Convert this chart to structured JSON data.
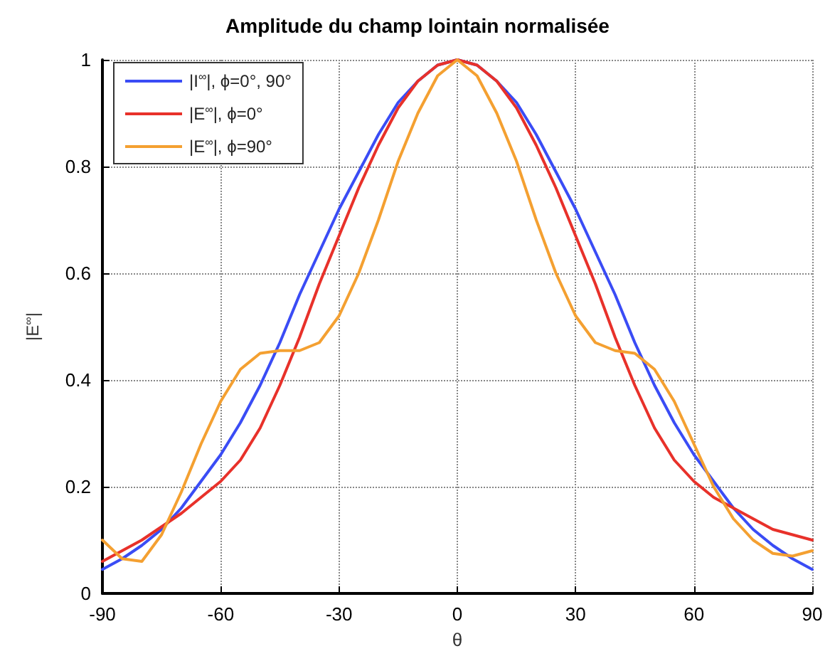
{
  "chart_data": {
    "type": "line",
    "title": "Amplitude du champ lointain normalisée",
    "xlabel": "θ",
    "ylabel": "|E$^{∞}$|",
    "x": [
      -90,
      -85,
      -80,
      -75,
      -70,
      -65,
      -60,
      -55,
      -50,
      -45,
      -40,
      -35,
      -30,
      -25,
      -20,
      -15,
      -10,
      -5,
      0,
      5,
      10,
      15,
      20,
      25,
      30,
      35,
      40,
      45,
      50,
      55,
      60,
      65,
      70,
      75,
      80,
      85,
      90
    ],
    "series": [
      {
        "name": "|I$^{∞}$|, ϕ=0°, 90°",
        "color": "#3a4cf5",
        "values": [
          0.045,
          0.065,
          0.09,
          0.12,
          0.16,
          0.21,
          0.26,
          0.32,
          0.39,
          0.47,
          0.56,
          0.64,
          0.72,
          0.79,
          0.86,
          0.92,
          0.96,
          0.99,
          1,
          0.99,
          0.96,
          0.92,
          0.86,
          0.79,
          0.72,
          0.64,
          0.56,
          0.47,
          0.39,
          0.32,
          0.26,
          0.21,
          0.16,
          0.12,
          0.09,
          0.065,
          0.045
        ]
      },
      {
        "name": "|E$^{∞}$|, ϕ=0°",
        "color": "#e8312a",
        "values": [
          0.06,
          0.08,
          0.1,
          0.125,
          0.15,
          0.18,
          0.21,
          0.25,
          0.31,
          0.39,
          0.48,
          0.58,
          0.67,
          0.76,
          0.84,
          0.91,
          0.96,
          0.99,
          1,
          0.99,
          0.96,
          0.91,
          0.84,
          0.76,
          0.67,
          0.58,
          0.48,
          0.39,
          0.31,
          0.25,
          0.21,
          0.18,
          0.16,
          0.14,
          0.12,
          0.11,
          0.1
        ]
      },
      {
        "name": "|E$^{∞}$|, ϕ=90°",
        "color": "#f4a031",
        "values": [
          0.1,
          0.065,
          0.06,
          0.11,
          0.19,
          0.28,
          0.36,
          0.42,
          0.45,
          0.455,
          0.455,
          0.47,
          0.52,
          0.6,
          0.7,
          0.81,
          0.9,
          0.97,
          1,
          0.97,
          0.9,
          0.81,
          0.7,
          0.6,
          0.52,
          0.47,
          0.455,
          0.45,
          0.42,
          0.36,
          0.28,
          0.2,
          0.14,
          0.1,
          0.075,
          0.07,
          0.08
        ]
      }
    ],
    "xlim": [
      -90,
      90
    ],
    "xticks": [
      -90,
      -60,
      -30,
      0,
      30,
      60,
      90
    ],
    "ylim": [
      0,
      1
    ],
    "yticks": [
      0,
      0.2,
      0.4,
      0.6,
      0.8,
      1
    ],
    "grid": true,
    "legend": "top left",
    "marker": "none",
    "line_style": "solid"
  }
}
